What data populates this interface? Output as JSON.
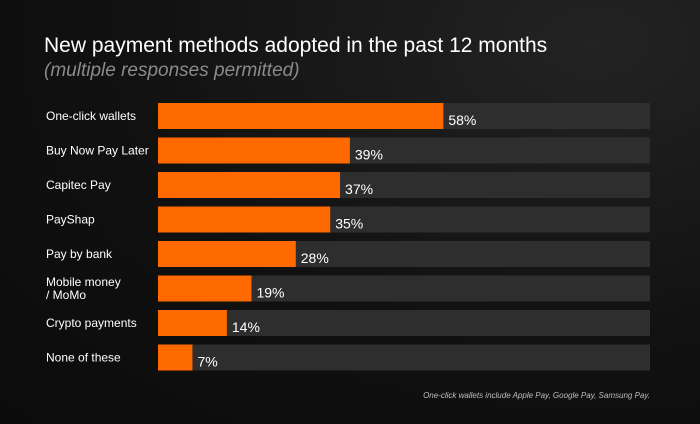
{
  "header": {
    "title": "New payment methods adopted in the past 12 months",
    "subtitle": "(multiple responses permitted)"
  },
  "footnote": "One-click wallets include Apple Pay, Google Pay, Samsung Pay.",
  "colors": {
    "bar": "#ff6a00",
    "track": "#2e2e2e",
    "background": "#111111"
  },
  "chart_data": {
    "type": "bar",
    "orientation": "horizontal",
    "title": "New payment methods adopted in the past 12 months",
    "subtitle": "(multiple responses permitted)",
    "categories": [
      "One-click wallets",
      "Buy Now Pay Later",
      "Capitec Pay",
      "PayShap",
      "Pay by bank",
      "Mobile money\n/ MoMo",
      "Crypto payments",
      "None of these"
    ],
    "values": [
      58,
      39,
      37,
      35,
      28,
      19,
      14,
      7
    ],
    "value_labels": [
      "58%",
      "39%",
      "37%",
      "35%",
      "28%",
      "19%",
      "14%",
      "7%"
    ],
    "xlim": [
      0,
      100
    ],
    "unit": "%",
    "grid": false,
    "legend": "none"
  }
}
